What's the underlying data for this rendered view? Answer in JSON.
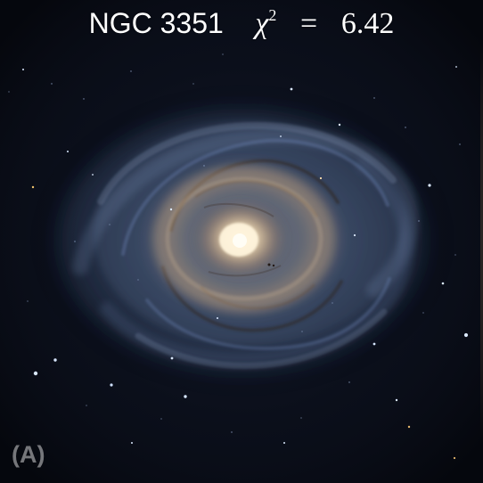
{
  "title": {
    "name": "NGC 3351",
    "chi_symbol": "χ",
    "chi_power": "2",
    "equals": "=",
    "value": "6.42"
  },
  "panel_label": "(A)",
  "colors": {
    "background": "#090c15",
    "galaxy_core": "#fff2d2",
    "ring_glow": "#e1ba8b",
    "disk_blue": "#7f9fd3"
  }
}
